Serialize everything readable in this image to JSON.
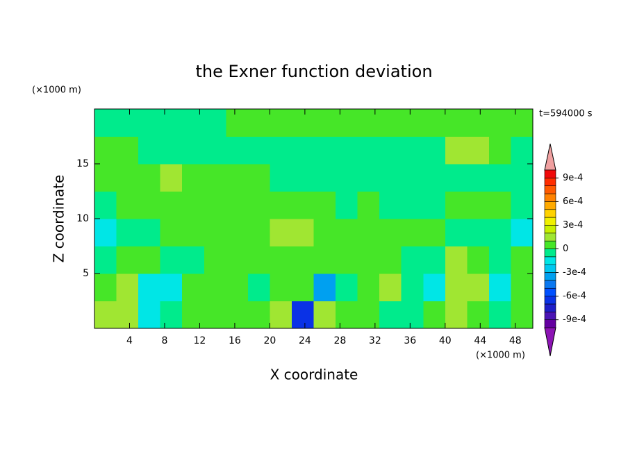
{
  "chart_data": {
    "type": "contour",
    "title": "the Exner function deviation",
    "xlabel": "X coordinate",
    "ylabel": "Z coordinate",
    "x_unit": "(×1000 m)",
    "y_unit": "(×1000 m)",
    "time_label": "t=594000 s",
    "xlim": [
      0,
      50
    ],
    "ylim": [
      0,
      20
    ],
    "xticks": [
      4,
      8,
      12,
      16,
      20,
      24,
      28,
      32,
      36,
      40,
      44,
      48
    ],
    "yticks": [
      5,
      10,
      15
    ],
    "x": [
      1.25,
      3.75,
      6.25,
      8.75,
      11.25,
      13.75,
      16.25,
      18.75,
      21.25,
      23.75,
      26.25,
      28.75,
      31.25,
      33.75,
      36.25,
      38.75,
      41.25,
      43.75,
      46.25,
      48.75
    ],
    "y": [
      1.25,
      3.75,
      6.25,
      8.75,
      11.25,
      13.75,
      16.25,
      18.75
    ],
    "values": [
      [
        0.00015,
        0.00015,
        -0.00015,
        -5e-05,
        5e-05,
        5e-05,
        5e-05,
        5e-05,
        0.00015,
        -0.00065,
        0.00015,
        5e-05,
        5e-05,
        -5e-05,
        -5e-05,
        5e-05,
        0.00015,
        5e-05,
        -5e-05,
        5e-05
      ],
      [
        5e-05,
        0.00015,
        -0.00015,
        -0.00015,
        5e-05,
        5e-05,
        5e-05,
        -5e-05,
        5e-05,
        5e-05,
        -0.00035,
        -5e-05,
        5e-05,
        0.00015,
        -5e-05,
        -0.00015,
        0.00015,
        0.00015,
        -0.00015,
        5e-05
      ],
      [
        -5e-05,
        5e-05,
        5e-05,
        -5e-05,
        -5e-05,
        5e-05,
        5e-05,
        5e-05,
        5e-05,
        5e-05,
        5e-05,
        5e-05,
        5e-05,
        5e-05,
        -5e-05,
        -5e-05,
        0.00015,
        5e-05,
        -5e-05,
        5e-05
      ],
      [
        -0.00015,
        -5e-05,
        -5e-05,
        5e-05,
        5e-05,
        5e-05,
        5e-05,
        5e-05,
        0.00015,
        0.00015,
        5e-05,
        5e-05,
        5e-05,
        5e-05,
        5e-05,
        5e-05,
        -5e-05,
        -5e-05,
        -5e-05,
        -0.00015
      ],
      [
        -5e-05,
        5e-05,
        5e-05,
        5e-05,
        5e-05,
        5e-05,
        5e-05,
        5e-05,
        5e-05,
        5e-05,
        5e-05,
        -5e-05,
        5e-05,
        -5e-05,
        -5e-05,
        -5e-05,
        5e-05,
        5e-05,
        5e-05,
        -5e-05
      ],
      [
        5e-05,
        5e-05,
        5e-05,
        0.00015,
        5e-05,
        5e-05,
        5e-05,
        5e-05,
        -5e-05,
        -5e-05,
        -5e-05,
        -5e-05,
        -5e-05,
        -5e-05,
        -5e-05,
        -5e-05,
        -5e-05,
        -5e-05,
        -5e-05,
        -5e-05
      ],
      [
        5e-05,
        5e-05,
        -5e-05,
        -5e-05,
        -5e-05,
        -5e-05,
        -5e-05,
        -5e-05,
        -5e-05,
        -5e-05,
        -5e-05,
        -5e-05,
        -5e-05,
        -5e-05,
        -5e-05,
        -5e-05,
        0.00015,
        0.00015,
        5e-05,
        -5e-05
      ],
      [
        -5e-05,
        -5e-05,
        -5e-05,
        -5e-05,
        -5e-05,
        -5e-05,
        5e-05,
        5e-05,
        5e-05,
        5e-05,
        5e-05,
        5e-05,
        5e-05,
        5e-05,
        5e-05,
        5e-05,
        5e-05,
        5e-05,
        5e-05,
        5e-05
      ]
    ],
    "levels": [
      -0.001,
      -0.0009,
      -0.0008,
      -0.0007,
      -0.0006,
      -0.0005,
      -0.0004,
      -0.0003,
      -0.0002,
      -0.0001,
      0,
      0.0001,
      0.0002,
      0.0003,
      0.0004,
      0.0005,
      0.0006,
      0.0007,
      0.0008,
      0.0009,
      0.001
    ],
    "colors": [
      "#6400a0",
      "#4b14b4",
      "#1e1ec8",
      "#0a32e6",
      "#0050ff",
      "#0a78f0",
      "#00a0f0",
      "#00c8f0",
      "#00e6e6",
      "#00eb8c",
      "#46e628",
      "#a0e632",
      "#c8f000",
      "#f0f000",
      "#ffd200",
      "#ffaa00",
      "#ff8200",
      "#ff5a00",
      "#ff2d00",
      "#f00a0a"
    ],
    "under_color": "#8c14b4",
    "over_color": "#f0a0a0",
    "colorbar_ticks": [
      {
        "value": 0.0009,
        "label": "9e-4"
      },
      {
        "value": 0.0006,
        "label": "6e-4"
      },
      {
        "value": 0.0003,
        "label": "3e-4"
      },
      0,
      {
        "value": -0.0003,
        "label": "-3e-4"
      },
      {
        "value": -0.0006,
        "label": "-6e-4"
      },
      {
        "value": -0.0009,
        "label": "-9e-4"
      }
    ]
  }
}
